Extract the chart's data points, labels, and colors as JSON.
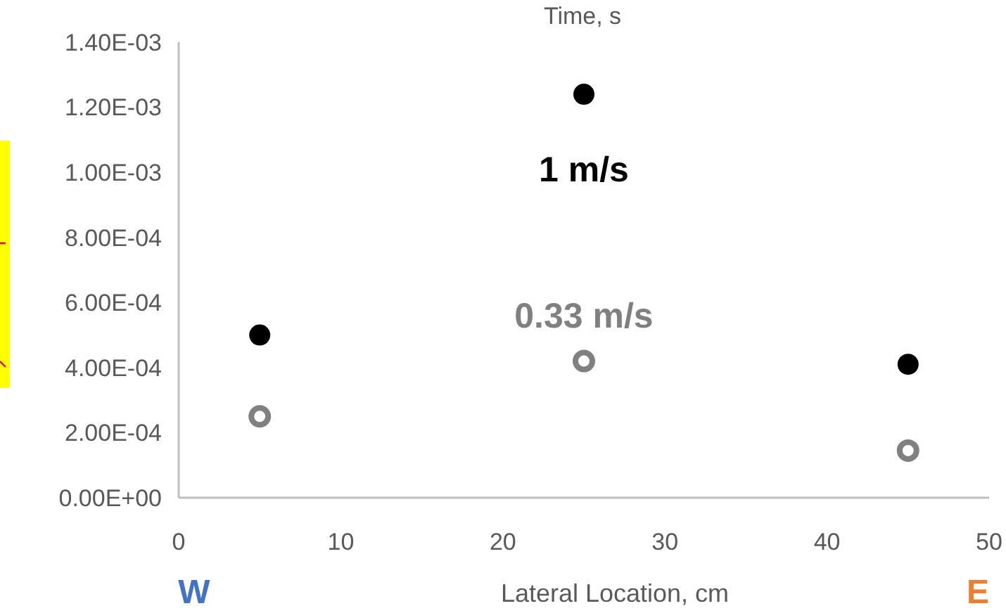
{
  "chart_data": {
    "type": "scatter",
    "title": "Time, s",
    "xlabel": "Lateral Location, cm",
    "xlim": [
      0,
      50
    ],
    "xticks": [
      0,
      10,
      20,
      30,
      40,
      50
    ],
    "ylim": [
      0,
      0.0014
    ],
    "yticks": [
      {
        "value": 0,
        "label": "0.00E+00"
      },
      {
        "value": 0.0002,
        "label": "2.00E-04"
      },
      {
        "value": 0.0004,
        "label": "4.00E-04"
      },
      {
        "value": 0.0006,
        "label": "6.00E-04"
      },
      {
        "value": 0.0008,
        "label": "8.00E-04"
      },
      {
        "value": 0.001,
        "label": "1.00E-03"
      },
      {
        "value": 0.0012,
        "label": "1.20E-03"
      },
      {
        "value": 0.0014,
        "label": "1.40E-03"
      }
    ],
    "grid": false,
    "marker": "circle",
    "series": [
      {
        "name": "1 m/s",
        "color": "#000000",
        "x": [
          5,
          25,
          45
        ],
        "values": [
          0.0005,
          0.00124,
          0.00041
        ]
      },
      {
        "name": "0.33 m/s",
        "color": "#808080",
        "x": [
          5,
          25,
          45
        ],
        "values": [
          0.00025,
          0.00042,
          0.000145
        ]
      }
    ],
    "annotations": [
      "W",
      "E"
    ]
  }
}
